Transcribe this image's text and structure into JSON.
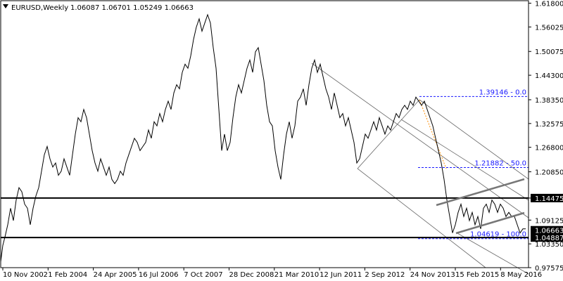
{
  "header": {
    "symbol": "EURUSD,Weekly",
    "ohlc": "1.06087 1.06701 1.05249 1.06663"
  },
  "chart_data": {
    "type": "line",
    "title": "EURUSD,Weekly",
    "ylim": [
      0.97575,
      1.624
    ],
    "y_ticks": [
      "1.61800",
      "1.56025",
      "1.50075",
      "1.44300",
      "1.38350",
      "1.32575",
      "1.26800",
      "1.20850",
      "1.14475",
      "1.09125",
      "1.03350",
      "0.97575"
    ],
    "x_ticks": [
      "10 Nov 2002",
      "1 Feb 2004",
      "24 Apr 2005",
      "16 Jul 2006",
      "7 Oct 2007",
      "28 Dec 2008",
      "21 Mar 2010",
      "12 Jun 2011",
      "2 Sep 2012",
      "24 Nov 2013",
      "15 Feb 2015",
      "8 May 2016"
    ],
    "series": [
      {
        "values": [
          [
            0,
            0.99
          ],
          [
            3,
            1.03
          ],
          [
            6,
            1.05
          ],
          [
            10,
            1.08
          ],
          [
            14,
            1.12
          ],
          [
            18,
            1.09
          ],
          [
            22,
            1.14
          ],
          [
            26,
            1.17
          ],
          [
            30,
            1.16
          ],
          [
            34,
            1.13
          ],
          [
            38,
            1.12
          ],
          [
            42,
            1.08
          ],
          [
            46,
            1.12
          ],
          [
            50,
            1.15
          ],
          [
            54,
            1.17
          ],
          [
            58,
            1.21
          ],
          [
            62,
            1.25
          ],
          [
            66,
            1.27
          ],
          [
            70,
            1.24
          ],
          [
            74,
            1.22
          ],
          [
            78,
            1.23
          ],
          [
            82,
            1.2
          ],
          [
            86,
            1.21
          ],
          [
            90,
            1.24
          ],
          [
            94,
            1.22
          ],
          [
            98,
            1.2
          ],
          [
            102,
            1.25
          ],
          [
            106,
            1.3
          ],
          [
            110,
            1.34
          ],
          [
            114,
            1.33
          ],
          [
            118,
            1.36
          ],
          [
            122,
            1.34
          ],
          [
            126,
            1.3
          ],
          [
            130,
            1.26
          ],
          [
            134,
            1.23
          ],
          [
            138,
            1.21
          ],
          [
            142,
            1.24
          ],
          [
            146,
            1.22
          ],
          [
            150,
            1.2
          ],
          [
            154,
            1.22
          ],
          [
            158,
            1.19
          ],
          [
            162,
            1.18
          ],
          [
            166,
            1.19
          ],
          [
            170,
            1.21
          ],
          [
            174,
            1.2
          ],
          [
            178,
            1.23
          ],
          [
            182,
            1.25
          ],
          [
            186,
            1.27
          ],
          [
            190,
            1.29
          ],
          [
            194,
            1.28
          ],
          [
            198,
            1.26
          ],
          [
            202,
            1.27
          ],
          [
            206,
            1.28
          ],
          [
            210,
            1.31
          ],
          [
            214,
            1.29
          ],
          [
            218,
            1.33
          ],
          [
            222,
            1.32
          ],
          [
            226,
            1.35
          ],
          [
            230,
            1.33
          ],
          [
            234,
            1.36
          ],
          [
            238,
            1.38
          ],
          [
            242,
            1.36
          ],
          [
            246,
            1.4
          ],
          [
            250,
            1.42
          ],
          [
            254,
            1.41
          ],
          [
            258,
            1.45
          ],
          [
            262,
            1.47
          ],
          [
            266,
            1.46
          ],
          [
            270,
            1.49
          ],
          [
            274,
            1.53
          ],
          [
            278,
            1.56
          ],
          [
            282,
            1.58
          ],
          [
            286,
            1.55
          ],
          [
            290,
            1.57
          ],
          [
            294,
            1.59
          ],
          [
            298,
            1.57
          ],
          [
            302,
            1.51
          ],
          [
            306,
            1.46
          ],
          [
            310,
            1.36
          ],
          [
            314,
            1.26
          ],
          [
            318,
            1.3
          ],
          [
            322,
            1.26
          ],
          [
            326,
            1.28
          ],
          [
            330,
            1.34
          ],
          [
            334,
            1.39
          ],
          [
            338,
            1.42
          ],
          [
            342,
            1.4
          ],
          [
            346,
            1.43
          ],
          [
            350,
            1.46
          ],
          [
            354,
            1.48
          ],
          [
            358,
            1.45
          ],
          [
            362,
            1.5
          ],
          [
            366,
            1.51
          ],
          [
            370,
            1.47
          ],
          [
            374,
            1.43
          ],
          [
            378,
            1.37
          ],
          [
            382,
            1.33
          ],
          [
            386,
            1.32
          ],
          [
            390,
            1.26
          ],
          [
            394,
            1.22
          ],
          [
            398,
            1.19
          ],
          [
            402,
            1.25
          ],
          [
            406,
            1.3
          ],
          [
            410,
            1.33
          ],
          [
            414,
            1.29
          ],
          [
            418,
            1.32
          ],
          [
            422,
            1.38
          ],
          [
            426,
            1.39
          ],
          [
            430,
            1.41
          ],
          [
            434,
            1.37
          ],
          [
            438,
            1.42
          ],
          [
            442,
            1.46
          ],
          [
            446,
            1.48
          ],
          [
            450,
            1.45
          ],
          [
            454,
            1.47
          ],
          [
            458,
            1.44
          ],
          [
            462,
            1.41
          ],
          [
            466,
            1.39
          ],
          [
            470,
            1.36
          ],
          [
            474,
            1.4
          ],
          [
            478,
            1.37
          ],
          [
            482,
            1.34
          ],
          [
            486,
            1.35
          ],
          [
            490,
            1.32
          ],
          [
            494,
            1.34
          ],
          [
            498,
            1.31
          ],
          [
            502,
            1.28
          ],
          [
            506,
            1.23
          ],
          [
            510,
            1.24
          ],
          [
            514,
            1.27
          ],
          [
            518,
            1.3
          ],
          [
            522,
            1.29
          ],
          [
            526,
            1.31
          ],
          [
            530,
            1.33
          ],
          [
            534,
            1.31
          ],
          [
            538,
            1.34
          ],
          [
            542,
            1.32
          ],
          [
            546,
            1.3
          ],
          [
            550,
            1.32
          ],
          [
            554,
            1.31
          ],
          [
            558,
            1.33
          ],
          [
            562,
            1.35
          ],
          [
            566,
            1.34
          ],
          [
            570,
            1.36
          ],
          [
            574,
            1.37
          ],
          [
            578,
            1.36
          ],
          [
            582,
            1.38
          ],
          [
            586,
            1.37
          ],
          [
            590,
            1.39
          ],
          [
            594,
            1.38
          ],
          [
            598,
            1.37
          ],
          [
            602,
            1.38
          ],
          [
            606,
            1.36
          ],
          [
            610,
            1.34
          ],
          [
            614,
            1.32
          ],
          [
            618,
            1.29
          ],
          [
            622,
            1.26
          ],
          [
            626,
            1.23
          ],
          [
            630,
            1.19
          ],
          [
            634,
            1.14
          ],
          [
            638,
            1.1
          ],
          [
            642,
            1.06
          ],
          [
            646,
            1.08
          ],
          [
            650,
            1.11
          ],
          [
            654,
            1.13
          ],
          [
            658,
            1.1
          ],
          [
            662,
            1.12
          ],
          [
            666,
            1.09
          ],
          [
            670,
            1.11
          ],
          [
            674,
            1.08
          ],
          [
            678,
            1.1
          ],
          [
            682,
            1.07
          ],
          [
            686,
            1.12
          ],
          [
            690,
            1.13
          ],
          [
            694,
            1.11
          ],
          [
            698,
            1.14
          ],
          [
            702,
            1.13
          ],
          [
            706,
            1.11
          ],
          [
            710,
            1.13
          ],
          [
            714,
            1.12
          ],
          [
            718,
            1.1
          ],
          [
            722,
            1.11
          ],
          [
            726,
            1.1
          ],
          [
            730,
            1.1
          ],
          [
            734,
            1.08
          ],
          [
            738,
            1.06
          ],
          [
            742,
            1.07
          ],
          [
            746,
            1.07
          ]
        ]
      }
    ],
    "horizontal_levels": [
      {
        "price": 1.14475,
        "label": "1.14475"
      },
      {
        "price": 1.04887,
        "label": "1.04887"
      }
    ],
    "price_marker": {
      "price": 1.06663,
      "label": "1.06663"
    },
    "fibonacci": [
      {
        "price": 1.39146,
        "label": "1.39146 - 0.0"
      },
      {
        "price": 1.21882,
        "label": "1.21882 - 50.0"
      },
      {
        "price": 1.04619,
        "label": "1.04619 - 100.0"
      }
    ],
    "colors": {
      "price_line": "#000000",
      "level_line": "#000000",
      "channel_line": "#777777",
      "thin_channel": "#666666",
      "fib": "#1a1aff",
      "fib_trend": "#ff8c00",
      "marker_bg": "#000000",
      "marker_text": "#ffffff"
    }
  }
}
